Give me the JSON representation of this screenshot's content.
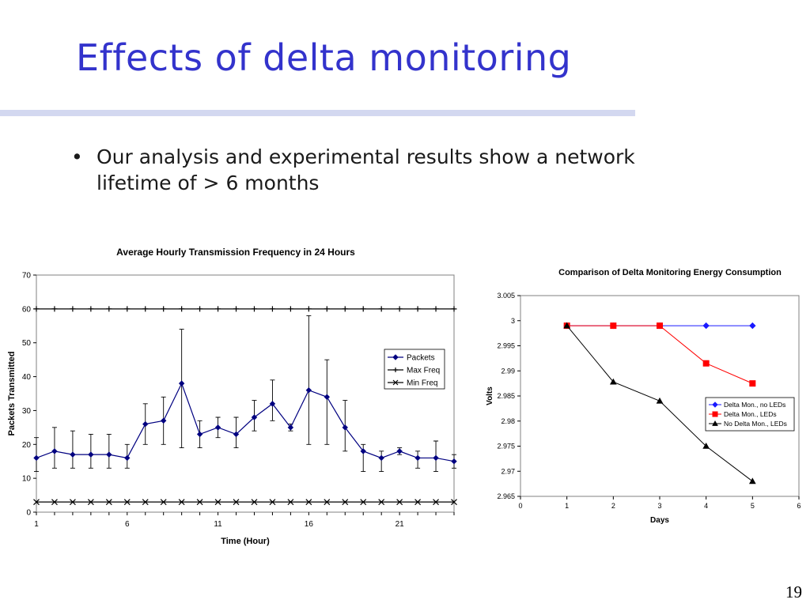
{
  "slide": {
    "title": "Effects of delta monitoring",
    "bullet": "Our analysis and experimental results show a network lifetime of > 6 months",
    "bullet_marker": "•",
    "page_number": "19",
    "title_color": "#3333cc"
  },
  "chart_data": [
    {
      "type": "line",
      "title": "Average Hourly Transmission Frequency in 24 Hours",
      "xlabel": "Time (Hour)",
      "ylabel": "Packets Transmitted",
      "xlim": [
        1,
        24
      ],
      "ylim": [
        0,
        70
      ],
      "xticks": [
        1,
        6,
        11,
        16,
        21
      ],
      "yticks": [
        0,
        10,
        20,
        30,
        40,
        50,
        60,
        70
      ],
      "grid": "horizontal-at-top-only",
      "legend_position": "right",
      "x": [
        1,
        2,
        3,
        4,
        5,
        6,
        7,
        8,
        9,
        10,
        11,
        12,
        13,
        14,
        15,
        16,
        17,
        18,
        19,
        20,
        21,
        22,
        23,
        24
      ],
      "series": [
        {
          "name": "Packets",
          "marker": "diamond",
          "color": "#000080",
          "values": [
            16,
            18,
            17,
            17,
            17,
            16,
            26,
            27,
            38,
            23,
            25,
            23,
            28,
            32,
            25,
            36,
            34,
            25,
            18,
            16,
            18,
            16,
            16,
            15
          ],
          "error_low": [
            12,
            13,
            13,
            13,
            13,
            13,
            20,
            20,
            19,
            19,
            22,
            19,
            24,
            27,
            24,
            20,
            20,
            18,
            12,
            12,
            17,
            13,
            12,
            13
          ],
          "error_high": [
            22,
            25,
            24,
            23,
            23,
            20,
            32,
            34,
            54,
            27,
            28,
            28,
            33,
            39,
            26,
            58,
            45,
            33,
            20,
            18,
            19,
            18,
            21,
            17
          ]
        },
        {
          "name": "Max Freq",
          "marker": "plus",
          "color": "#000000",
          "values": [
            60,
            60,
            60,
            60,
            60,
            60,
            60,
            60,
            60,
            60,
            60,
            60,
            60,
            60,
            60,
            60,
            60,
            60,
            60,
            60,
            60,
            60,
            60,
            60
          ]
        },
        {
          "name": "Min Freq",
          "marker": "x",
          "color": "#000000",
          "values": [
            3,
            3,
            3,
            3,
            3,
            3,
            3,
            3,
            3,
            3,
            3,
            3,
            3,
            3,
            3,
            3,
            3,
            3,
            3,
            3,
            3,
            3,
            3,
            3
          ]
        }
      ]
    },
    {
      "type": "line",
      "title": "Comparison of Delta Monitoring Energy Consumption",
      "xlabel": "Days",
      "ylabel": "Volts",
      "xlim": [
        0,
        6
      ],
      "ylim": [
        2.965,
        3.005
      ],
      "xticks": [
        0,
        1,
        2,
        3,
        4,
        5,
        6
      ],
      "yticks": [
        "2.965",
        "2.97",
        "2.975",
        "2.98",
        "2.985",
        "2.99",
        "2.995",
        "3",
        "3.005"
      ],
      "grid": "none",
      "legend_position": "right",
      "x": [
        1,
        2,
        3,
        4,
        5
      ],
      "series": [
        {
          "name": "Delta Mon., no LEDs",
          "marker": "diamond",
          "color": "#1a1aff",
          "values": [
            2.999,
            2.999,
            2.999,
            2.999,
            2.999
          ]
        },
        {
          "name": "Delta Mon., LEDs",
          "marker": "square",
          "color": "#ff0000",
          "values": [
            2.999,
            2.999,
            2.999,
            2.9915,
            2.9875
          ]
        },
        {
          "name": "No Delta Mon., LEDs",
          "marker": "triangle",
          "color": "#000000",
          "values": [
            2.999,
            2.9878,
            2.984,
            2.975,
            2.968
          ]
        }
      ]
    }
  ]
}
